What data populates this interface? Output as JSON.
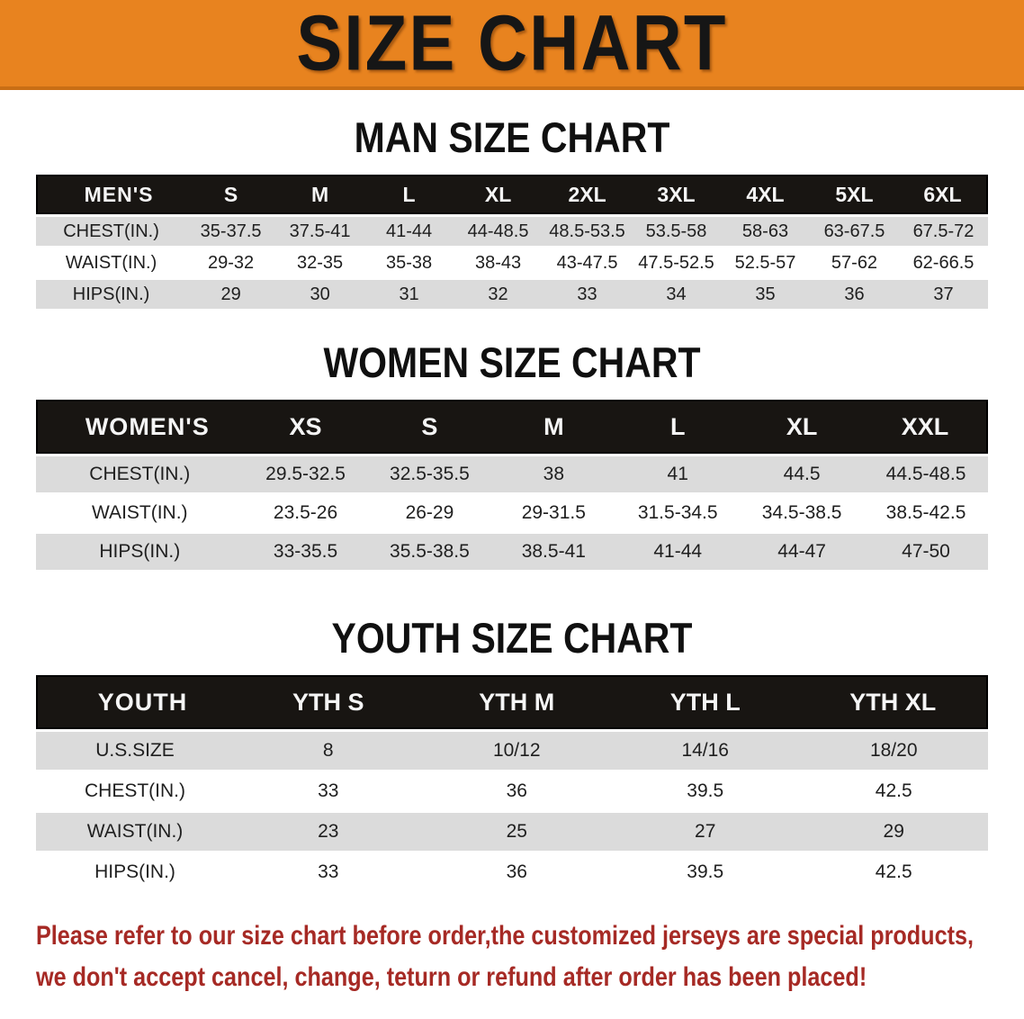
{
  "banner": {
    "title": "SIZE CHART"
  },
  "sections": [
    {
      "heading": "MAN SIZE CHART",
      "table": {
        "header": [
          "MEN'S",
          "S",
          "M",
          "L",
          "XL",
          "2XL",
          "3XL",
          "4XL",
          "5XL",
          "6XL"
        ],
        "rows": [
          {
            "label": "CHEST(IN.)",
            "values": [
              "35-37.5",
              "37.5-41",
              "41-44",
              "44-48.5",
              "48.5-53.5",
              "53.5-58",
              "58-63",
              "63-67.5",
              "67.5-72"
            ]
          },
          {
            "label": "WAIST(IN.)",
            "values": [
              "29-32",
              "32-35",
              "35-38",
              "38-43",
              "43-47.5",
              "47.5-52.5",
              "52.5-57",
              "57-62",
              "62-66.5"
            ]
          },
          {
            "label": "HIPS(IN.)",
            "values": [
              "29",
              "30",
              "31",
              "32",
              "33",
              "34",
              "35",
              "36",
              "37"
            ]
          }
        ]
      }
    },
    {
      "heading": "WOMEN SIZE CHART",
      "table": {
        "header": [
          "WOMEN'S",
          "XS",
          "S",
          "M",
          "L",
          "XL",
          "XXL"
        ],
        "rows": [
          {
            "label": "CHEST(IN.)",
            "values": [
              "29.5-32.5",
              "32.5-35.5",
              "38",
              "41",
              "44.5",
              "44.5-48.5"
            ]
          },
          {
            "label": "WAIST(IN.)",
            "values": [
              "23.5-26",
              "26-29",
              "29-31.5",
              "31.5-34.5",
              "34.5-38.5",
              "38.5-42.5"
            ]
          },
          {
            "label": "HIPS(IN.)",
            "values": [
              "33-35.5",
              "35.5-38.5",
              "38.5-41",
              "41-44",
              "44-47",
              "47-50"
            ]
          }
        ]
      }
    },
    {
      "heading": "YOUTH SIZE CHART",
      "table": {
        "header": [
          "YOUTH",
          "YTH S",
          "YTH M",
          "YTH L",
          "YTH XL"
        ],
        "rows": [
          {
            "label": "U.S.SIZE",
            "values": [
              "8",
              "10/12",
              "14/16",
              "18/20"
            ]
          },
          {
            "label": "CHEST(IN.)",
            "values": [
              "33",
              "36",
              "39.5",
              "42.5"
            ]
          },
          {
            "label": "WAIST(IN.)",
            "values": [
              "23",
              "25",
              "27",
              "29"
            ]
          },
          {
            "label": "HIPS(IN.)",
            "values": [
              "33",
              "36",
              "39.5",
              "42.5"
            ]
          }
        ]
      }
    }
  ],
  "disclaimer": {
    "line1": "Please refer to our size chart before order,the customized jerseys are special products,",
    "line2": "we don't accept cancel, change, teturn or refund after order has been placed!"
  },
  "colors": {
    "banner-bg": "#E8831F",
    "banner-edge": "#C96E15",
    "title-ink": "#161616",
    "bar-bg": "#181512",
    "stripe": "#DBDBDB",
    "warn-red": "#A62A25"
  }
}
